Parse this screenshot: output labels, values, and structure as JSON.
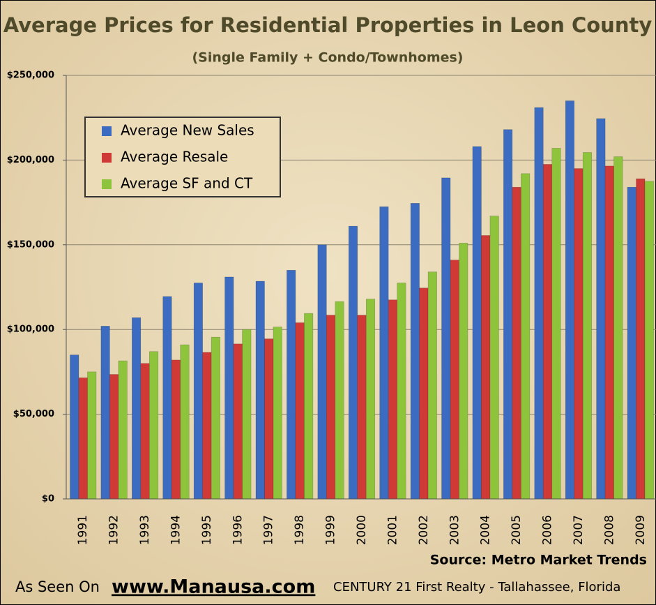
{
  "chart_data": {
    "type": "bar",
    "title": "Average Prices for Residential Properties in Leon County",
    "subtitle": "(Single Family + Condo/Townhomes)",
    "source": "Source: Metro Market Trends",
    "categories": [
      "1991",
      "1992",
      "1993",
      "1994",
      "1995",
      "1996",
      "1997",
      "1998",
      "1999",
      "2000",
      "2001",
      "2002",
      "2003",
      "2004",
      "2005",
      "2006",
      "2007",
      "2008",
      "2009"
    ],
    "series": [
      {
        "name": "Average New Sales",
        "color": "#3b6cc2",
        "values": [
          85000,
          102000,
          107000,
          119500,
          127500,
          131000,
          128500,
          135000,
          150000,
          161000,
          172500,
          174500,
          189500,
          208000,
          218000,
          231000,
          235000,
          224500,
          184000
        ]
      },
      {
        "name": "Average Resale",
        "color": "#d03a36",
        "values": [
          71500,
          73500,
          80000,
          82000,
          86500,
          91500,
          94500,
          104000,
          108500,
          108500,
          117500,
          124500,
          141000,
          155500,
          184000,
          197500,
          195000,
          196500,
          189000
        ]
      },
      {
        "name": "Average SF and CT",
        "color": "#8dc43c",
        "values": [
          75000,
          81500,
          87000,
          91000,
          95500,
          100000,
          101500,
          109500,
          116500,
          118000,
          127500,
          134000,
          151000,
          167000,
          192000,
          207000,
          204500,
          202000,
          187500
        ]
      }
    ],
    "ylim": [
      0,
      250000
    ],
    "yticks": [
      {
        "value": 0,
        "label": "$0"
      },
      {
        "value": 50000,
        "label": "$50,000"
      },
      {
        "value": 100000,
        "label": "$100,000"
      },
      {
        "value": 150000,
        "label": "$150,000"
      },
      {
        "value": 200000,
        "label": "$200,000"
      },
      {
        "value": 250000,
        "label": "$250,000"
      }
    ],
    "grid": true,
    "legend": "upper left"
  },
  "footer": {
    "prefix": "As Seen On",
    "site": "www.Manausa.com",
    "company": "CENTURY 21 First Realty - Tallahassee, Florida"
  }
}
